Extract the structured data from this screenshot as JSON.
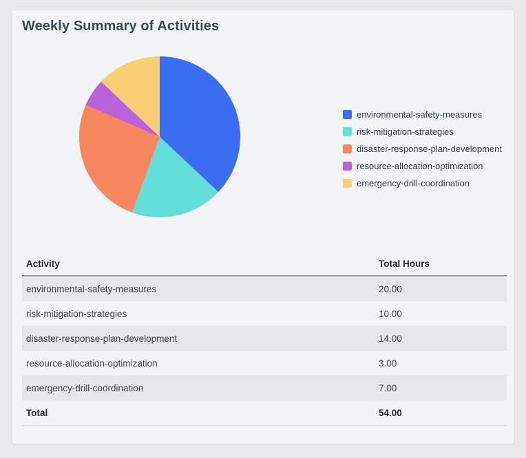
{
  "card": {
    "title": "Weekly Summary of Activities"
  },
  "chart_data": {
    "type": "pie",
    "title": "Weekly Summary of Activities",
    "labels": [
      "environmental-safety-measures",
      "risk-mitigation-strategies",
      "disaster-response-plan-development",
      "resource-allocation-optimization",
      "emergency-drill-coordination"
    ],
    "values": [
      20,
      10,
      14,
      3,
      7
    ],
    "total": 54,
    "colors": [
      "#3A6DF0",
      "#63DED8",
      "#F6875F",
      "#BB61DC",
      "#FACE74"
    ],
    "start_angle": "top",
    "direction": "clockwise",
    "legend_position": "right"
  },
  "table": {
    "headers": [
      "Activity",
      "Total Hours"
    ],
    "rows": [
      {
        "activity": "environmental-safety-measures",
        "hours": "20.00"
      },
      {
        "activity": "risk-mitigation-strategies",
        "hours": "10.00"
      },
      {
        "activity": "disaster-response-plan-development",
        "hours": "14.00"
      },
      {
        "activity": "resource-allocation-optimization",
        "hours": "3.00"
      },
      {
        "activity": "emergency-drill-coordination",
        "hours": "7.00"
      }
    ],
    "total_row": {
      "label": "Total",
      "hours": "54.00"
    }
  }
}
